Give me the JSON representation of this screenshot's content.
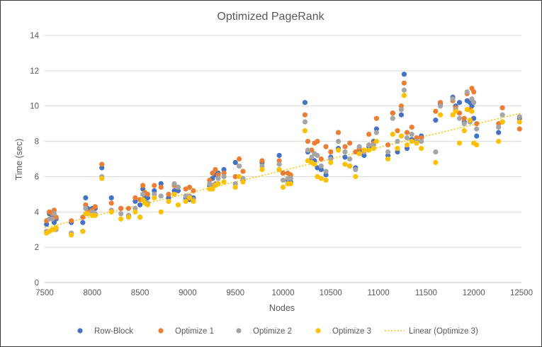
{
  "chart_data": {
    "type": "scatter",
    "title": "Optimized PageRank",
    "xlabel": "Nodes",
    "ylabel": "Time (sec)",
    "xlim": [
      7500,
      12500
    ],
    "ylim": [
      0,
      14
    ],
    "x_ticks": [
      7500,
      8000,
      8500,
      9000,
      9500,
      10000,
      10500,
      11000,
      11500,
      12000,
      12500
    ],
    "y_ticks": [
      0,
      2,
      4,
      6,
      8,
      10,
      12,
      14
    ],
    "grid": "horizontal",
    "legend_position": "bottom",
    "x": [
      7520,
      7550,
      7580,
      7600,
      7620,
      7780,
      7900,
      7930,
      7950,
      8000,
      8030,
      8100,
      8200,
      8300,
      8380,
      8450,
      8500,
      8530,
      8550,
      8580,
      8650,
      8720,
      8800,
      8860,
      8900,
      8980,
      9020,
      9060,
      9230,
      9260,
      9290,
      9320,
      9380,
      9500,
      9540,
      9580,
      9780,
      9960,
      10000,
      10050,
      10080,
      10230,
      10260,
      10300,
      10330,
      10360,
      10400,
      10450,
      10500,
      10580,
      10650,
      10700,
      10760,
      10800,
      10850,
      10900,
      10950,
      10980,
      11100,
      11150,
      11200,
      11240,
      11270,
      11300,
      11350,
      11400,
      11450,
      11600,
      11650,
      11780,
      11810,
      11850,
      11900,
      11930,
      11960,
      11980,
      12000,
      12030,
      12260,
      12300,
      12480
    ],
    "series": [
      {
        "name": "Row-Block",
        "color": "#4472C4",
        "values": [
          3.3,
          3.9,
          3.7,
          3.4,
          3.6,
          3.4,
          3.4,
          4.8,
          4.2,
          4.2,
          4.2,
          6.5,
          4.8,
          4.2,
          3.8,
          4.6,
          4.4,
          5.3,
          4.9,
          4.8,
          5.2,
          5.6,
          4.8,
          5.2,
          5.2,
          4.8,
          4.7,
          4.8,
          5.5,
          5.9,
          6.1,
          6.2,
          6.4,
          6.8,
          6.6,
          5.8,
          6.8,
          7.2,
          6.2,
          5.8,
          5.7,
          10.2,
          7.4,
          7.0,
          6.9,
          6.5,
          6.4,
          6.1,
          7.1,
          7.6,
          7.1,
          6.6,
          6.5,
          7.5,
          7.2,
          7.7,
          8.0,
          8.7,
          7.2,
          9.6,
          7.4,
          9.5,
          11.8,
          7.6,
          8.1,
          8.0,
          8.3,
          9.2,
          10.1,
          10.5,
          10.0,
          10.2,
          9.1,
          10.3,
          10.2,
          10.0,
          9.3,
          8.3,
          8.5,
          9.1,
          9.3
        ]
      },
      {
        "name": "Optimize 1",
        "color": "#ED7D31",
        "values": [
          3.5,
          4.0,
          3.9,
          4.1,
          3.7,
          3.5,
          3.7,
          4.4,
          4.0,
          4.1,
          4.3,
          6.7,
          4.5,
          4.2,
          4.2,
          4.8,
          4.7,
          5.5,
          5.1,
          5.0,
          5.5,
          5.4,
          5.0,
          5.5,
          5.4,
          5.3,
          5.4,
          5.2,
          5.8,
          6.2,
          6.4,
          6.1,
          6.2,
          6.0,
          7.0,
          6.3,
          6.9,
          6.9,
          6.2,
          6.2,
          6.1,
          9.5,
          8.0,
          7.5,
          7.9,
          8.0,
          7.0,
          7.7,
          7.4,
          8.5,
          7.7,
          7.9,
          7.4,
          7.6,
          7.5,
          8.4,
          7.9,
          9.3,
          7.8,
          9.6,
          8.6,
          10.0,
          11.3,
          8.5,
          8.8,
          8.2,
          8.2,
          9.7,
          10.2,
          10.3,
          9.9,
          9.6,
          9.3,
          10.7,
          9.8,
          11.0,
          10.8,
          9.0,
          9.0,
          9.9,
          8.7
        ]
      },
      {
        "name": "Optimize 2",
        "color": "#A5A5A5",
        "values": [
          2.9,
          3.6,
          3.6,
          3.9,
          3.0,
          2.8,
          2.9,
          4.2,
          3.9,
          4.0,
          3.9,
          6.0,
          4.1,
          3.9,
          3.8,
          4.2,
          3.7,
          5.0,
          4.6,
          4.5,
          5.0,
          4.9,
          4.6,
          5.6,
          5.4,
          4.9,
          4.9,
          4.7,
          5.6,
          5.5,
          5.6,
          5.9,
          6.0,
          5.6,
          6.6,
          5.9,
          6.6,
          6.7,
          5.8,
          5.9,
          5.9,
          9.1,
          7.5,
          7.1,
          7.3,
          7.2,
          6.6,
          6.3,
          7.0,
          8.0,
          7.4,
          7.0,
          6.4,
          7.7,
          7.4,
          7.8,
          7.8,
          8.5,
          7.4,
          9.3,
          8.0,
          9.8,
          10.9,
          8.2,
          8.4,
          8.0,
          8.0,
          7.4,
          10.0,
          10.4,
          9.8,
          9.3,
          9.0,
          10.8,
          9.1,
          10.4,
          10.2,
          8.7,
          8.8,
          9.5,
          9.4
        ]
      },
      {
        "name": "Optimize 3",
        "color": "#FFC000",
        "values": [
          2.8,
          2.9,
          3.0,
          3.0,
          3.1,
          2.7,
          2.9,
          3.9,
          3.9,
          3.8,
          3.8,
          5.9,
          4.0,
          3.6,
          3.7,
          4.0,
          3.7,
          4.7,
          4.5,
          4.4,
          4.8,
          4.0,
          4.6,
          5.0,
          4.4,
          4.6,
          4.8,
          4.6,
          5.3,
          5.3,
          5.5,
          5.6,
          5.7,
          5.4,
          6.0,
          5.7,
          6.4,
          6.4,
          5.4,
          5.6,
          5.6,
          8.6,
          6.9,
          6.8,
          6.7,
          6.0,
          5.9,
          5.8,
          6.8,
          7.5,
          6.7,
          6.6,
          6.0,
          7.3,
          7.5,
          7.5,
          7.6,
          8.0,
          7.0,
          8.4,
          7.6,
          8.3,
          10.6,
          7.8,
          8.0,
          7.9,
          7.6,
          6.8,
          9.5,
          9.5,
          9.7,
          7.9,
          8.6,
          9.8,
          9.2,
          9.7,
          7.9,
          7.8,
          8.0,
          9.1,
          9.1
        ]
      }
    ],
    "trendline": {
      "name": "Linear (Optimize 3)",
      "series": "Optimize 3",
      "color": "#FFC000",
      "style": "dotted",
      "from": [
        7500,
        3.1
      ],
      "to": [
        12500,
        9.6
      ]
    }
  }
}
